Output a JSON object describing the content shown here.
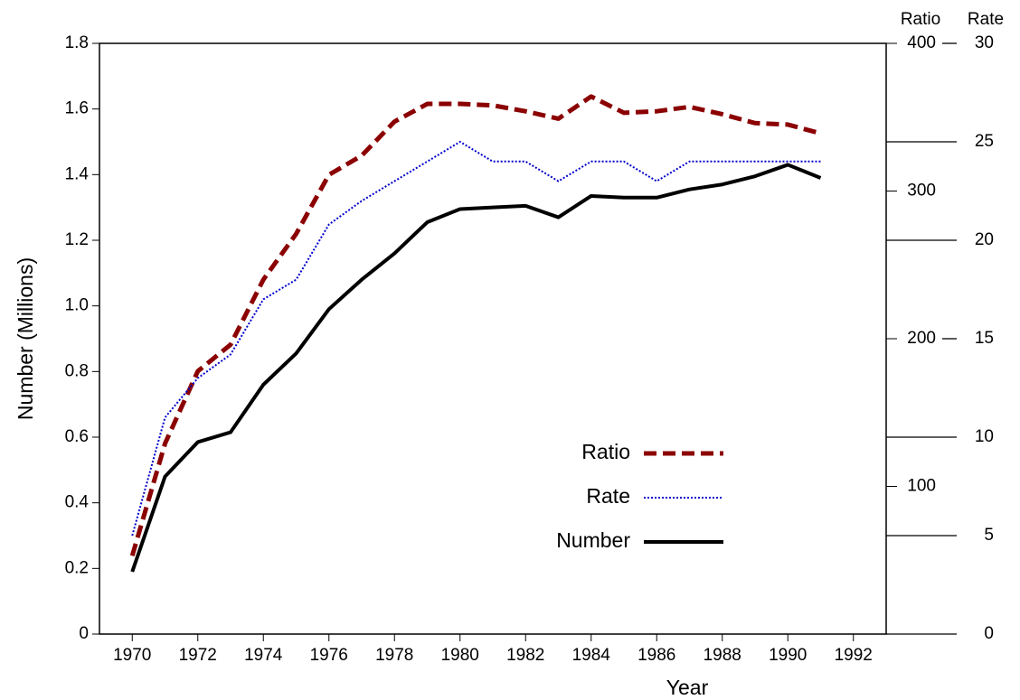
{
  "chart_data": {
    "type": "line",
    "x_label": "Year",
    "y_label": "Number (Millions)",
    "y2_label": "Ratio",
    "y3_label": "Rate",
    "x": [
      1970,
      1971,
      1972,
      1973,
      1974,
      1975,
      1976,
      1977,
      1978,
      1979,
      1980,
      1981,
      1982,
      1983,
      1984,
      1985,
      1986,
      1987,
      1988,
      1989,
      1990,
      1991
    ],
    "series": [
      {
        "name": "Ratio",
        "color": "#8b0000",
        "axis": "y2",
        "style": "dashed",
        "values": [
          53,
          129,
          178,
          196,
          240,
          271,
          311,
          324,
          347,
          359,
          359,
          358,
          354,
          349,
          364,
          353,
          354,
          357,
          352,
          346,
          345,
          339
        ]
      },
      {
        "name": "Rate",
        "color": "#0000cc",
        "axis": "y3",
        "style": "dotted",
        "values": [
          5.0,
          11.0,
          13.0,
          14.2,
          17.0,
          18.0,
          20.8,
          22.0,
          23.0,
          24.0,
          25.0,
          24.0,
          24.0,
          23.0,
          24.0,
          24.0,
          23.0,
          24.0,
          24.0,
          24.0,
          24.0,
          24.0
        ]
      },
      {
        "name": "Number",
        "color": "#000000",
        "axis": "y",
        "style": "solid",
        "values": [
          0.19,
          0.48,
          0.585,
          0.615,
          0.76,
          0.855,
          0.99,
          1.08,
          1.16,
          1.255,
          1.295,
          1.3,
          1.305,
          1.27,
          1.335,
          1.33,
          1.33,
          1.355,
          1.37,
          1.395,
          1.43,
          1.39
        ]
      }
    ],
    "xlim": [
      1969,
      1993
    ],
    "xticks": [
      1970,
      1972,
      1974,
      1976,
      1978,
      1980,
      1982,
      1984,
      1986,
      1988,
      1990,
      1992
    ],
    "ylim": [
      0,
      1.8
    ],
    "yticks": [
      0,
      {
        "value": 0.2,
        "label": "0.2"
      },
      {
        "value": 0.4,
        "label": "0.4"
      },
      {
        "value": 0.6,
        "label": "0.6"
      },
      {
        "value": 0.8,
        "label": "0.8"
      },
      {
        "value": 1,
        "label": "1.0"
      },
      {
        "value": 1.2,
        "label": "1.2"
      },
      {
        "value": 1.4,
        "label": "1.4"
      },
      {
        "value": 1.6,
        "label": "1.6"
      },
      {
        "value": 1.8,
        "label": "1.8"
      }
    ],
    "y2lim": [
      0,
      400
    ],
    "y2ticks": [
      100,
      200,
      300,
      400
    ],
    "y3lim": [
      0,
      30
    ],
    "y3ticks": [
      0,
      5,
      10,
      15,
      20,
      25,
      30
    ],
    "legend": "lower right"
  }
}
